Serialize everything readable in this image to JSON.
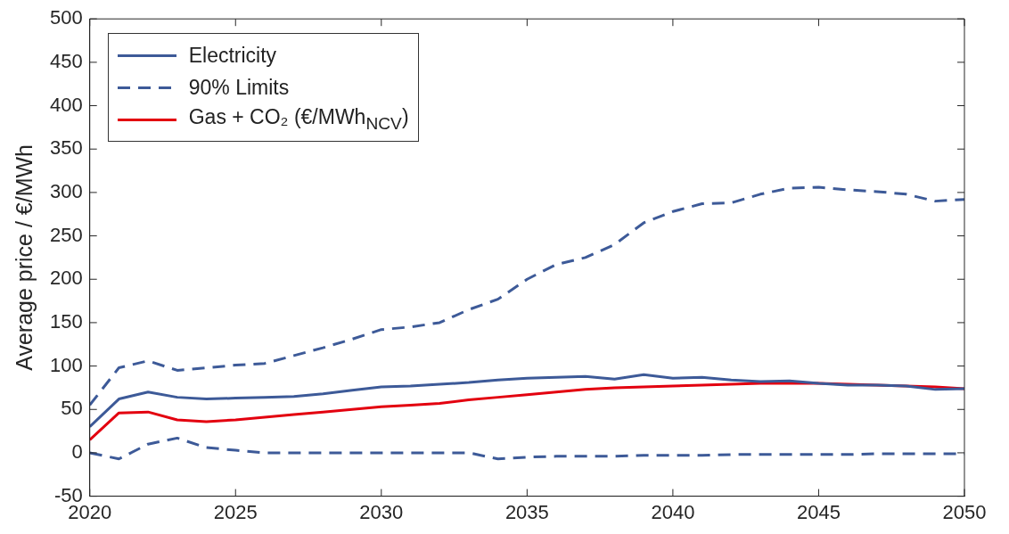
{
  "chart_data": {
    "type": "line",
    "ylabel": "Average price / €/MWh",
    "x": [
      2020,
      2021,
      2022,
      2023,
      2024,
      2025,
      2026,
      2027,
      2028,
      2029,
      2030,
      2031,
      2032,
      2033,
      2034,
      2035,
      2036,
      2037,
      2038,
      2039,
      2040,
      2041,
      2042,
      2043,
      2044,
      2045,
      2046,
      2047,
      2048,
      2049,
      2050
    ],
    "xlim": [
      2020,
      2050
    ],
    "xticks": [
      2020,
      2025,
      2030,
      2035,
      2040,
      2045,
      2050
    ],
    "ylim": [
      -50,
      500
    ],
    "yticks": [
      -50,
      0,
      50,
      100,
      150,
      200,
      250,
      300,
      350,
      400,
      450,
      500
    ],
    "grid": false,
    "legend": "top left",
    "marker": "none",
    "series": [
      {
        "name": "Electricity",
        "color": "#3d5a98",
        "line_style": "solid",
        "values": [
          30,
          62,
          70,
          64,
          62,
          63,
          64,
          65,
          68,
          72,
          76,
          77,
          79,
          81,
          84,
          86,
          87,
          88,
          85,
          90,
          86,
          87,
          84,
          82,
          83,
          80,
          78,
          78,
          77,
          73,
          74
        ]
      },
      {
        "name": "90% Limits",
        "color": "#3d5a98",
        "line_style": "dashed",
        "values": [
          55,
          98,
          106,
          95,
          98,
          101,
          103,
          112,
          121,
          131,
          142,
          145,
          150,
          165,
          177,
          200,
          217,
          225,
          240,
          265,
          278,
          287,
          288,
          298,
          305,
          306,
          303,
          301,
          298,
          290,
          292
        ]
      },
      {
        "color": "#3d5a98",
        "line_style": "dashed",
        "values": [
          0,
          -7,
          10,
          17,
          6,
          3,
          0,
          0,
          0,
          0,
          0,
          0,
          0,
          0,
          -7,
          -5,
          -4,
          -4,
          -4,
          -3,
          -3,
          -3,
          -2,
          -2,
          -2,
          -2,
          -2,
          -1,
          -1,
          -1,
          -1
        ]
      },
      {
        "name": "Gas + CO₂ (€/MWh$_{NCV}$)",
        "color": "#e3000f",
        "line_style": "solid",
        "values": [
          15,
          46,
          47,
          38,
          36,
          38,
          41,
          44,
          47,
          50,
          53,
          55,
          57,
          61,
          64,
          67,
          70,
          73,
          75,
          76,
          77,
          78,
          79,
          80,
          80,
          80,
          79,
          78,
          77,
          76,
          74
        ]
      }
    ]
  }
}
